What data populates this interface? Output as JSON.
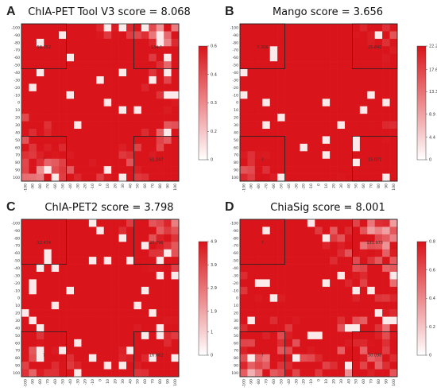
{
  "chart_data": [
    {
      "type": "heatmap",
      "panel_label": "A",
      "title": "ChIA-PET Tool V3 score = 8.068",
      "ticks": [
        "-100",
        "-90",
        "-80",
        "-70",
        "-60",
        "-50",
        "-40",
        "-30",
        "-20",
        "-10",
        "0",
        "10",
        "20",
        "30",
        "40",
        "50",
        "60",
        "70",
        "80",
        "90",
        "100"
      ],
      "colorbar_ticks": [
        "0.6",
        "0.4",
        "0.3",
        "0.2",
        "0"
      ],
      "colorbar_values": [
        0.6,
        0.45,
        0.3,
        0.15,
        0
      ],
      "vmax": 0.6,
      "colors": {
        "high": "#d9141a",
        "low": "#ffffff"
      },
      "seed": 11,
      "density": 0.93,
      "noise": 0.22,
      "box_annotations": [
        {
          "quadrant": "top-left",
          "value": "58.152"
        },
        {
          "quadrant": "top-right",
          "value": "134.?"
        },
        {
          "quadrant": "bottom-left",
          "value": "?"
        },
        {
          "quadrant": "bottom-right",
          "value": "51.247"
        }
      ]
    },
    {
      "type": "heatmap",
      "panel_label": "B",
      "title": "Mango score = 3.656",
      "ticks": [
        "-100",
        "-90",
        "-80",
        "-70",
        "-60",
        "-50",
        "-40",
        "-30",
        "-20",
        "-10",
        "0",
        "10",
        "20",
        "30",
        "40",
        "50",
        "60",
        "70",
        "80",
        "90",
        "100"
      ],
      "colorbar_ticks": [
        "22.2",
        "17.6",
        "13.3",
        "8.9",
        "4.4",
        "0"
      ],
      "colorbar_values": [
        22.2,
        17.6,
        13.3,
        8.9,
        4.4,
        0
      ],
      "vmax": 22.2,
      "colors": {
        "high": "#d9141a",
        "low": "#ffffff"
      },
      "seed": 5,
      "density": 0.99,
      "noise": 0.1,
      "box_annotations": [
        {
          "quadrant": "top-left",
          "value": "7.306"
        },
        {
          "quadrant": "top-right",
          "value": "25.841"
        },
        {
          "quadrant": "bottom-left",
          "value": "?"
        },
        {
          "quadrant": "bottom-right",
          "value": "15.071"
        }
      ]
    },
    {
      "type": "heatmap",
      "panel_label": "C",
      "title": "ChIA-PET2 score = 3.798",
      "ticks": [
        "-100",
        "-90",
        "-80",
        "-70",
        "-60",
        "-50",
        "-40",
        "-30",
        "-20",
        "-10",
        "0",
        "10",
        "20",
        "30",
        "40",
        "50",
        "60",
        "70",
        "80",
        "90",
        "100"
      ],
      "colorbar_ticks": [
        "4.9",
        "3.9",
        "2.9",
        "1.9",
        "1",
        "0"
      ],
      "colorbar_values": [
        4.9,
        3.9,
        2.9,
        1.9,
        1,
        0
      ],
      "vmax": 4.9,
      "colors": {
        "high": "#d9141a",
        "low": "#ffffff"
      },
      "seed": 23,
      "density": 0.96,
      "noise": 0.16,
      "box_annotations": [
        {
          "quadrant": "top-left",
          "value": "12.474"
        },
        {
          "quadrant": "top-right",
          "value": "27.796"
        },
        {
          "quadrant": "bottom-left",
          "value": "?"
        },
        {
          "quadrant": "bottom-right",
          "value": "16.062"
        }
      ]
    },
    {
      "type": "heatmap",
      "panel_label": "D",
      "title": "ChiaSig score = 8.001",
      "ticks": [
        "-100",
        "-90",
        "-80",
        "-70",
        "-60",
        "-50",
        "-40",
        "-30",
        "-20",
        "-10",
        "0",
        "10",
        "20",
        "30",
        "40",
        "50",
        "60",
        "70",
        "80",
        "90",
        "100"
      ],
      "colorbar_ticks": [
        "0.8",
        "0.6",
        "0.4",
        "0.2",
        "0"
      ],
      "colorbar_values": [
        0.8,
        0.6,
        0.4,
        0.2,
        0
      ],
      "vmax": 0.8,
      "colors": {
        "high": "#d9141a",
        "low": "#ffffff"
      },
      "seed": 41,
      "density": 0.86,
      "noise": 0.22,
      "box_annotations": [
        {
          "quadrant": "top-left",
          "value": "?"
        },
        {
          "quadrant": "top-right",
          "value": "131.975"
        },
        {
          "quadrant": "bottom-left",
          "value": "?"
        },
        {
          "quadrant": "bottom-right",
          "value": "50.098"
        }
      ]
    }
  ]
}
